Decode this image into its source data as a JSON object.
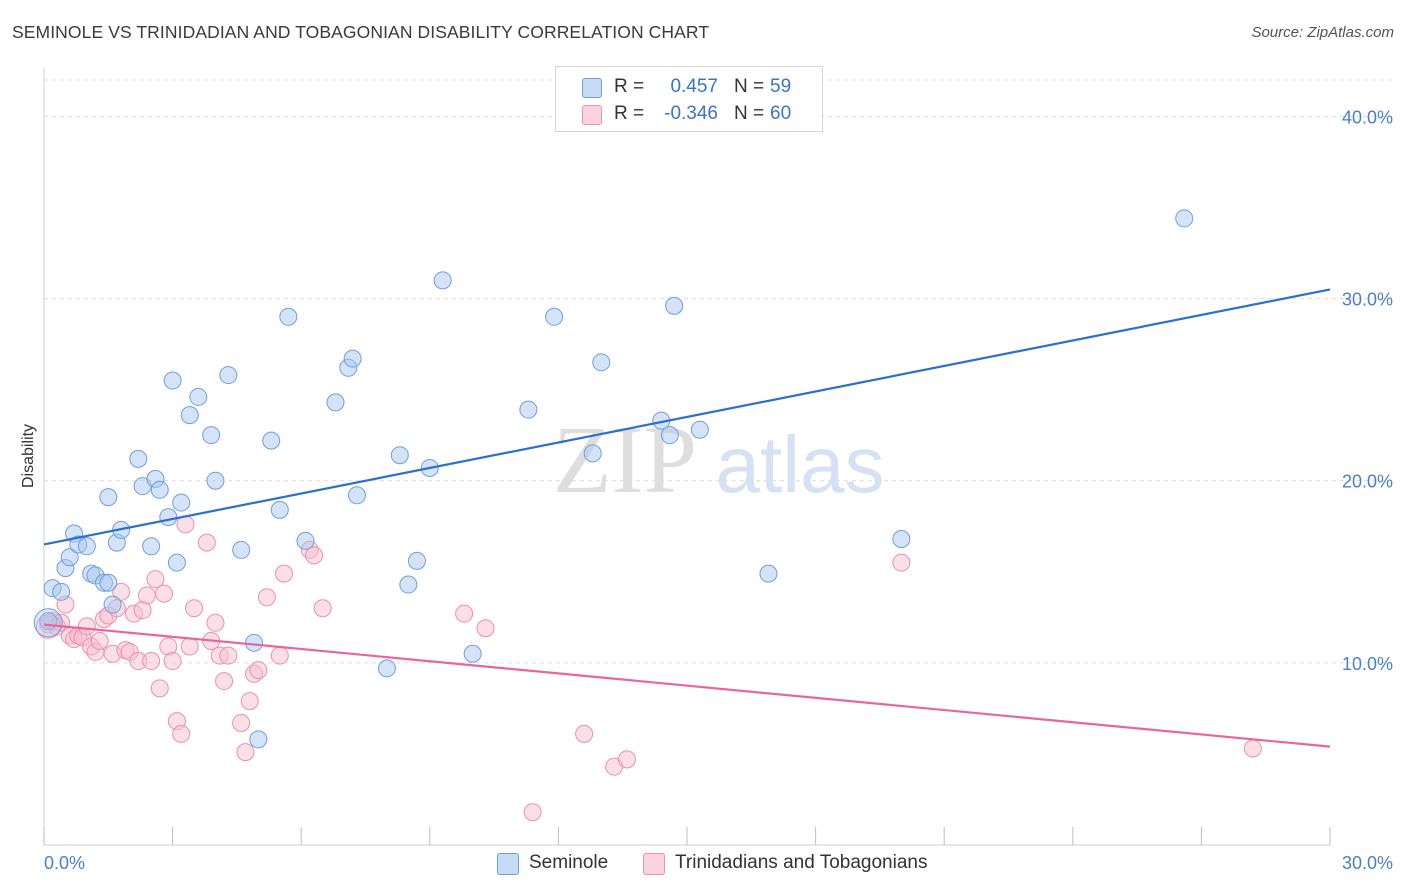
{
  "title": "SEMINOLE VS TRINIDADIAN AND TOBAGONIAN DISABILITY CORRELATION CHART",
  "source": "Source: ZipAtlas.com",
  "colors": {
    "blue": "#a9c8f0",
    "blue_stroke": "#6f9fe0",
    "blue_line": "#2b6fd0",
    "pink": "#f6c0d0",
    "pink_stroke": "#ec90ab",
    "pink_line": "#e8679a",
    "axis_text": "#4a7fcf"
  },
  "legend": {
    "rows": [
      {
        "r_label": "R =",
        "r_value": "0.457",
        "n_label": "N =",
        "n_value": "59",
        "color": "#a9c8f0"
      },
      {
        "r_label": "R =",
        "r_value": "-0.346",
        "n_label": "N =",
        "n_value": "60",
        "color": "#f6c0d0"
      }
    ]
  },
  "bottom_legend": {
    "items": [
      {
        "label": "Seminole",
        "color": "#a9c8f0"
      },
      {
        "label": "Trinidadians and Tobagonians",
        "color": "#f6c0d0"
      }
    ]
  },
  "watermark": {
    "part1": "ZIP",
    "part2": "atlas"
  },
  "chart_data": {
    "type": "scatter",
    "title": "SEMINOLE VS TRINIDADIAN AND TOBAGONIAN DISABILITY CORRELATION CHART",
    "xlabel": "",
    "ylabel": "Disability",
    "xlim": [
      0,
      30
    ],
    "ylim": [
      0,
      42
    ],
    "x_tick_labels": [
      "0.0%",
      "30.0%"
    ],
    "y_tick_labels": [
      "10.0%",
      "20.0%",
      "30.0%",
      "40.0%"
    ],
    "y_ticks": [
      10,
      20,
      30,
      40
    ],
    "grid": "horizontal dashed",
    "legend_position": "top-center",
    "series": [
      {
        "name": "Seminole",
        "trend": {
          "x": [
            0,
            30
          ],
          "y": [
            16.5,
            30.5
          ]
        },
        "points": [
          [
            0.2,
            14.1
          ],
          [
            0.4,
            13.9
          ],
          [
            0.5,
            15.2
          ],
          [
            0.6,
            15.8
          ],
          [
            0.7,
            17.1
          ],
          [
            0.8,
            16.5
          ],
          [
            1.0,
            16.4
          ],
          [
            1.1,
            14.9
          ],
          [
            1.2,
            14.8
          ],
          [
            1.4,
            14.4
          ],
          [
            1.5,
            14.4
          ],
          [
            1.6,
            13.2
          ],
          [
            1.7,
            16.6
          ],
          [
            1.8,
            17.3
          ],
          [
            1.5,
            19.1
          ],
          [
            2.2,
            21.2
          ],
          [
            2.3,
            19.7
          ],
          [
            2.5,
            16.4
          ],
          [
            2.6,
            20.1
          ],
          [
            2.7,
            19.5
          ],
          [
            2.9,
            18.0
          ],
          [
            3.0,
            25.5
          ],
          [
            3.1,
            15.5
          ],
          [
            3.2,
            18.8
          ],
          [
            3.4,
            23.6
          ],
          [
            3.6,
            24.6
          ],
          [
            3.9,
            22.5
          ],
          [
            4.0,
            20.0
          ],
          [
            4.3,
            25.8
          ],
          [
            4.6,
            16.2
          ],
          [
            4.9,
            11.1
          ],
          [
            5.0,
            5.8
          ],
          [
            5.3,
            22.2
          ],
          [
            5.5,
            18.4
          ],
          [
            5.7,
            29.0
          ],
          [
            6.1,
            16.7
          ],
          [
            6.8,
            24.3
          ],
          [
            7.1,
            26.2
          ],
          [
            7.2,
            26.7
          ],
          [
            7.3,
            19.2
          ],
          [
            8.3,
            21.4
          ],
          [
            8.0,
            9.7
          ],
          [
            8.5,
            14.3
          ],
          [
            8.7,
            15.6
          ],
          [
            9.0,
            20.7
          ],
          [
            9.3,
            31.0
          ],
          [
            10.0,
            10.5
          ],
          [
            11.3,
            23.9
          ],
          [
            11.9,
            29.0
          ],
          [
            12.8,
            21.5
          ],
          [
            13.0,
            26.5
          ],
          [
            14.4,
            23.3
          ],
          [
            14.6,
            22.5
          ],
          [
            14.7,
            29.6
          ],
          [
            15.3,
            22.8
          ],
          [
            16.9,
            14.9
          ],
          [
            20.0,
            16.8
          ],
          [
            26.6,
            34.4
          ],
          [
            0.1,
            12.3
          ]
        ]
      },
      {
        "name": "Trinidadians and Tobagonians",
        "trend": {
          "x": [
            0,
            30
          ],
          "y": [
            12.1,
            5.4
          ]
        },
        "points": [
          [
            0.1,
            12.1
          ],
          [
            0.2,
            12.3
          ],
          [
            0.3,
            12.0
          ],
          [
            0.4,
            12.2
          ],
          [
            0.5,
            13.2
          ],
          [
            0.6,
            11.5
          ],
          [
            0.7,
            11.3
          ],
          [
            0.8,
            11.5
          ],
          [
            0.9,
            11.4
          ],
          [
            1.0,
            12.0
          ],
          [
            1.1,
            10.9
          ],
          [
            1.2,
            10.6
          ],
          [
            1.3,
            11.2
          ],
          [
            1.4,
            12.4
          ],
          [
            1.5,
            12.6
          ],
          [
            1.6,
            10.5
          ],
          [
            1.7,
            13.0
          ],
          [
            1.8,
            13.9
          ],
          [
            1.9,
            10.7
          ],
          [
            2.0,
            10.6
          ],
          [
            2.1,
            12.7
          ],
          [
            2.2,
            10.1
          ],
          [
            2.3,
            12.9
          ],
          [
            2.4,
            13.7
          ],
          [
            2.5,
            10.1
          ],
          [
            2.6,
            14.6
          ],
          [
            2.7,
            8.6
          ],
          [
            2.8,
            13.8
          ],
          [
            2.9,
            10.9
          ],
          [
            3.0,
            10.1
          ],
          [
            3.1,
            6.8
          ],
          [
            3.2,
            6.1
          ],
          [
            3.3,
            17.6
          ],
          [
            3.4,
            10.9
          ],
          [
            3.5,
            13.0
          ],
          [
            3.8,
            16.6
          ],
          [
            3.9,
            11.2
          ],
          [
            4.0,
            12.2
          ],
          [
            4.1,
            10.4
          ],
          [
            4.2,
            9.0
          ],
          [
            4.3,
            10.4
          ],
          [
            4.6,
            6.7
          ],
          [
            4.7,
            5.1
          ],
          [
            4.8,
            7.9
          ],
          [
            4.9,
            9.4
          ],
          [
            5.0,
            9.6
          ],
          [
            5.2,
            13.6
          ],
          [
            5.5,
            10.4
          ],
          [
            5.6,
            14.9
          ],
          [
            6.2,
            16.2
          ],
          [
            6.3,
            15.9
          ],
          [
            6.5,
            13.0
          ],
          [
            9.8,
            12.7
          ],
          [
            10.3,
            11.9
          ],
          [
            11.4,
            1.8
          ],
          [
            12.6,
            6.1
          ],
          [
            13.3,
            4.3
          ],
          [
            13.6,
            4.7
          ],
          [
            20.0,
            15.5
          ],
          [
            28.2,
            5.3
          ]
        ]
      }
    ]
  }
}
